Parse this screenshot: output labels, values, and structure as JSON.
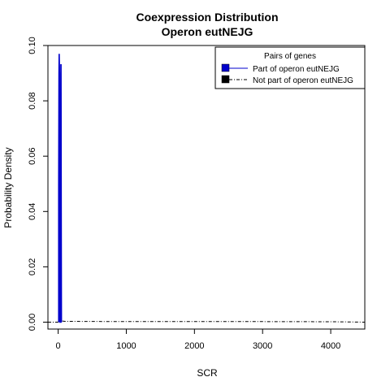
{
  "chart_data": {
    "type": "line",
    "title": "Coexpression Distribution",
    "subtitle": "Operon eutNEJG",
    "xlabel": "SCR",
    "ylabel": "Probability Density",
    "xlim": [
      -150,
      4500
    ],
    "ylim": [
      -0.0025,
      0.1
    ],
    "x_ticks": [
      0,
      1000,
      2000,
      3000,
      4000
    ],
    "y_ticks": [
      0.0,
      0.02,
      0.04,
      0.06,
      0.08,
      0.1
    ],
    "x_tick_labels": [
      "0",
      "1000",
      "2000",
      "3000",
      "4000"
    ],
    "y_tick_labels": [
      "0.00",
      "0.02",
      "0.04",
      "0.06",
      "0.08",
      "0.10"
    ],
    "grid": false,
    "legend": {
      "title": "Pairs of genes",
      "placement": "top-right",
      "entries": [
        "Part of operon eutNEJG",
        "Not part of operon eutNEJG"
      ]
    },
    "series": [
      {
        "name": "Part of operon eutNEJG",
        "color": "#0000cc",
        "line_style": "solid",
        "x": [
          8,
          8,
          12,
          15,
          20,
          23,
          27,
          30,
          32,
          35,
          38,
          40,
          42,
          45,
          48,
          50
        ],
        "y": [
          0.0,
          0.05,
          0.09,
          0.097,
          0.09,
          0.03,
          0.0,
          0.0,
          0.0,
          0.0,
          0.04,
          0.093,
          0.093,
          0.04,
          0.0,
          0.0
        ]
      },
      {
        "name": "Not part of operon eutNEJG",
        "color": "#000000",
        "line_style": "dashdot",
        "x": [
          -150,
          0,
          30,
          60,
          100,
          500,
          1000,
          2000,
          3000,
          4000,
          4200,
          4500
        ],
        "y": [
          0.0,
          0.0,
          0.0003,
          0.0004,
          0.0003,
          0.00025,
          0.0002,
          0.0002,
          0.0002,
          0.00015,
          0.0001,
          0.0
        ]
      }
    ]
  }
}
